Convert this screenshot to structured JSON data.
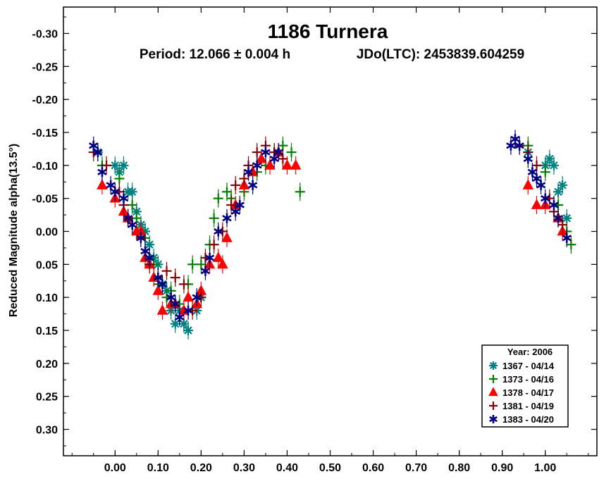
{
  "chart_data": {
    "type": "scatter",
    "title": "1186 Turnera",
    "subtitle_period": "Period: 12.066 ± 0.004 h",
    "subtitle_epoch": "JDo(LTC): 2453839.604259",
    "xlabel": "",
    "ylabel": "Reduced Magnitude alpha(13.5°)",
    "xlim": [
      -0.12,
      1.12
    ],
    "ylim": [
      -0.34,
      0.34
    ],
    "y_inverted": true,
    "xticks": [
      "0.00",
      "0.10",
      "0.20",
      "0.30",
      "0.40",
      "0.50",
      "0.60",
      "0.70",
      "0.80",
      "0.90",
      "1.00"
    ],
    "xtick_values": [
      0.0,
      0.1,
      0.2,
      0.3,
      0.4,
      0.5,
      0.6,
      0.7,
      0.8,
      0.9,
      1.0
    ],
    "yticks": [
      "-0.30",
      "-0.25",
      "-0.20",
      "-0.15",
      "-0.10",
      "-0.05",
      "0.00",
      "0.05",
      "0.10",
      "0.15",
      "0.20",
      "0.25",
      "0.30"
    ],
    "ytick_values": [
      -0.3,
      -0.25,
      -0.2,
      -0.15,
      -0.1,
      -0.05,
      0.0,
      0.05,
      0.1,
      0.15,
      0.2,
      0.25,
      0.3
    ],
    "grid": false,
    "legend": {
      "title": "Year: 2006",
      "placement": "bottom-right"
    },
    "series": [
      {
        "name": "1367 - 04/14",
        "marker": "asterisk",
        "color": "#008080",
        "points": [
          [
            -0.04,
            -0.12
          ],
          [
            0.0,
            -0.1
          ],
          [
            0.01,
            -0.09
          ],
          [
            0.02,
            -0.1
          ],
          [
            0.03,
            -0.06
          ],
          [
            0.04,
            -0.06
          ],
          [
            0.05,
            -0.03
          ],
          [
            0.06,
            -0.01
          ],
          [
            0.07,
            0.0
          ],
          [
            0.08,
            0.02
          ],
          [
            0.09,
            0.04
          ],
          [
            0.1,
            0.05
          ],
          [
            0.11,
            0.08
          ],
          [
            0.12,
            0.09
          ],
          [
            0.13,
            0.12
          ],
          [
            0.14,
            0.14
          ],
          [
            0.15,
            0.12
          ],
          [
            0.16,
            0.14
          ],
          [
            0.17,
            0.15
          ],
          [
            0.19,
            0.12
          ],
          [
            0.2,
            0.1
          ],
          [
            0.96,
            -0.12
          ],
          [
            1.0,
            -0.1
          ],
          [
            1.01,
            -0.11
          ],
          [
            1.02,
            -0.1
          ],
          [
            1.03,
            -0.06
          ],
          [
            1.04,
            -0.07
          ],
          [
            1.05,
            -0.02
          ]
        ]
      },
      {
        "name": "1373 - 04/16",
        "marker": "plus",
        "color": "#008000",
        "points": [
          [
            -0.03,
            -0.1
          ],
          [
            0.01,
            -0.08
          ],
          [
            0.04,
            -0.04
          ],
          [
            0.05,
            -0.02
          ],
          [
            0.07,
            0.01
          ],
          [
            0.09,
            0.05
          ],
          [
            0.1,
            0.08
          ],
          [
            0.12,
            0.1
          ],
          [
            0.13,
            0.09
          ],
          [
            0.15,
            0.11
          ],
          [
            0.17,
            0.08
          ],
          [
            0.18,
            0.05
          ],
          [
            0.2,
            0.05
          ],
          [
            0.22,
            0.02
          ],
          [
            0.23,
            -0.02
          ],
          [
            0.24,
            -0.05
          ],
          [
            0.26,
            -0.06
          ],
          [
            0.27,
            -0.05
          ],
          [
            0.3,
            -0.06
          ],
          [
            0.33,
            -0.09
          ],
          [
            0.35,
            -0.1
          ],
          [
            0.37,
            -0.12
          ],
          [
            0.39,
            -0.13
          ],
          [
            0.41,
            -0.12
          ],
          [
            0.43,
            -0.06
          ],
          [
            0.96,
            -0.13
          ],
          [
            1.0,
            -0.09
          ],
          [
            1.03,
            -0.04
          ],
          [
            1.05,
            0.0
          ],
          [
            1.06,
            0.02
          ]
        ]
      },
      {
        "name": "1378 - 04/17",
        "marker": "triangle",
        "color": "#ff0000",
        "points": [
          [
            -0.03,
            -0.07
          ],
          [
            0.0,
            -0.05
          ],
          [
            0.02,
            -0.03
          ],
          [
            0.03,
            -0.02
          ],
          [
            0.05,
            0.0
          ],
          [
            0.06,
            0.0
          ],
          [
            0.07,
            0.04
          ],
          [
            0.08,
            0.05
          ],
          [
            0.09,
            0.07
          ],
          [
            0.1,
            0.09
          ],
          [
            0.11,
            0.12
          ],
          [
            0.13,
            0.11
          ],
          [
            0.14,
            0.11
          ],
          [
            0.16,
            0.12
          ],
          [
            0.17,
            0.1
          ],
          [
            0.19,
            0.11
          ],
          [
            0.2,
            0.09
          ],
          [
            0.22,
            0.05
          ],
          [
            0.24,
            0.04
          ],
          [
            0.25,
            0.05
          ],
          [
            0.26,
            0.01
          ],
          [
            0.28,
            -0.04
          ],
          [
            0.3,
            -0.07
          ],
          [
            0.32,
            -0.09
          ],
          [
            0.34,
            -0.11
          ],
          [
            0.36,
            -0.1
          ],
          [
            0.38,
            -0.12
          ],
          [
            0.4,
            -0.1
          ],
          [
            0.42,
            -0.1
          ],
          [
            0.96,
            -0.07
          ],
          [
            0.98,
            -0.04
          ],
          [
            1.0,
            -0.04
          ],
          [
            1.03,
            -0.02
          ],
          [
            1.04,
            0.0
          ]
        ]
      },
      {
        "name": "1381 - 04/19",
        "marker": "plus",
        "color": "#8b0000",
        "points": [
          [
            -0.05,
            -0.12
          ],
          [
            -0.02,
            -0.1
          ],
          [
            0.01,
            -0.06
          ],
          [
            0.02,
            -0.04
          ],
          [
            0.03,
            -0.02
          ],
          [
            0.06,
            0.01
          ],
          [
            0.08,
            0.05
          ],
          [
            0.1,
            0.07
          ],
          [
            0.12,
            0.06
          ],
          [
            0.14,
            0.07
          ],
          [
            0.16,
            0.08
          ],
          [
            0.18,
            0.12
          ],
          [
            0.2,
            0.1
          ],
          [
            0.21,
            0.04
          ],
          [
            0.23,
            0.02
          ],
          [
            0.25,
            0.0
          ],
          [
            0.27,
            -0.04
          ],
          [
            0.28,
            -0.07
          ],
          [
            0.3,
            -0.08
          ],
          [
            0.31,
            -0.1
          ],
          [
            0.33,
            -0.12
          ],
          [
            0.35,
            -0.13
          ],
          [
            0.37,
            -0.12
          ],
          [
            0.39,
            -0.11
          ],
          [
            0.94,
            -0.13
          ],
          [
            0.96,
            -0.12
          ],
          [
            0.98,
            -0.1
          ],
          [
            1.01,
            -0.05
          ],
          [
            1.02,
            -0.03
          ],
          [
            1.04,
            -0.01
          ]
        ]
      },
      {
        "name": "1383 - 04/20",
        "marker": "star",
        "color": "#000080",
        "points": [
          [
            -0.05,
            -0.13
          ],
          [
            -0.04,
            -0.12
          ],
          [
            -0.03,
            -0.09
          ],
          [
            -0.01,
            -0.07
          ],
          [
            0.0,
            -0.06
          ],
          [
            0.02,
            -0.05
          ],
          [
            0.03,
            -0.02
          ],
          [
            0.04,
            -0.01
          ],
          [
            0.06,
            0.01
          ],
          [
            0.07,
            0.03
          ],
          [
            0.08,
            0.04
          ],
          [
            0.1,
            0.07
          ],
          [
            0.11,
            0.08
          ],
          [
            0.13,
            0.1
          ],
          [
            0.14,
            0.11
          ],
          [
            0.15,
            0.13
          ],
          [
            0.17,
            0.12
          ],
          [
            0.19,
            0.1
          ],
          [
            0.21,
            0.06
          ],
          [
            0.22,
            0.04
          ],
          [
            0.24,
            0.0
          ],
          [
            0.26,
            -0.02
          ],
          [
            0.28,
            -0.03
          ],
          [
            0.29,
            -0.04
          ],
          [
            0.31,
            -0.09
          ],
          [
            0.32,
            -0.07
          ],
          [
            0.33,
            -0.1
          ],
          [
            0.35,
            -0.12
          ],
          [
            0.37,
            -0.11
          ],
          [
            0.38,
            -0.12
          ],
          [
            0.92,
            -0.13
          ],
          [
            0.93,
            -0.14
          ],
          [
            0.94,
            -0.13
          ],
          [
            0.96,
            -0.11
          ],
          [
            0.97,
            -0.09
          ],
          [
            0.98,
            -0.08
          ],
          [
            0.99,
            -0.07
          ],
          [
            1.0,
            -0.05
          ],
          [
            1.02,
            -0.04
          ],
          [
            1.03,
            -0.02
          ],
          [
            1.05,
            0.01
          ]
        ]
      }
    ]
  }
}
